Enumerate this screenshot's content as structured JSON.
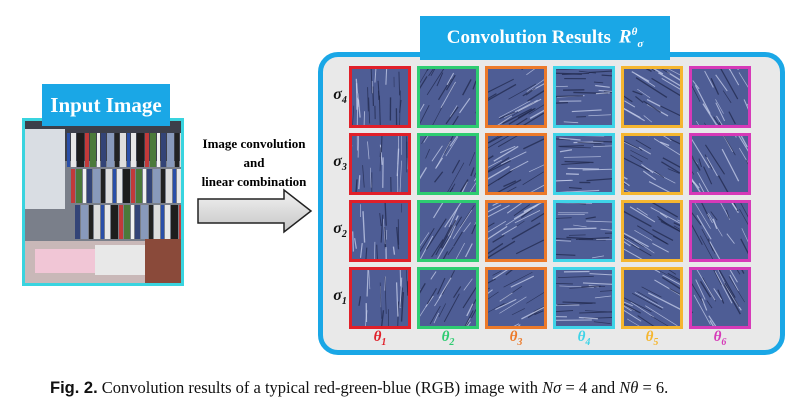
{
  "input": {
    "label": "Input Image"
  },
  "arrow": {
    "line1": "Image convolution",
    "line2": "and",
    "line3": "linear combination"
  },
  "results": {
    "title": "Convolution Results",
    "symbol_base": "R",
    "symbol_sup": "θ",
    "symbol_sub": "σ"
  },
  "rows": [
    {
      "base": "σ",
      "sub": "4"
    },
    {
      "base": "σ",
      "sub": "3"
    },
    {
      "base": "σ",
      "sub": "2"
    },
    {
      "base": "σ",
      "sub": "1"
    }
  ],
  "columns": [
    {
      "base": "θ",
      "sub": "1",
      "color": "#e0202a"
    },
    {
      "base": "θ",
      "sub": "2",
      "color": "#2ecc71"
    },
    {
      "base": "θ",
      "sub": "3",
      "color": "#ec7a2a"
    },
    {
      "base": "θ",
      "sub": "4",
      "color": "#3fd4e8"
    },
    {
      "base": "θ",
      "sub": "5",
      "color": "#f5b630"
    },
    {
      "base": "θ",
      "sub": "6",
      "color": "#d63ab8"
    }
  ],
  "caption": {
    "fig": "Fig. 2.",
    "text1": "Convolution results of a typical red-green-blue (RGB) image with ",
    "n_sigma": "Nσ",
    "eq1": " = 4 and ",
    "n_theta": "Nθ",
    "eq2": " = 6."
  }
}
